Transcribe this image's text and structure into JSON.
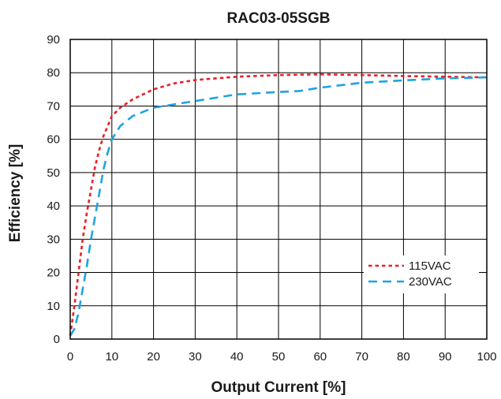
{
  "chart_data": {
    "type": "line",
    "title": "RAC03-05SGB",
    "xlabel": "Output Current [%]",
    "ylabel": "Efficiency [%]",
    "xlim": [
      0,
      100
    ],
    "ylim": [
      0,
      90
    ],
    "x_ticks": [
      0,
      10,
      20,
      30,
      40,
      50,
      60,
      70,
      80,
      90,
      100
    ],
    "y_ticks": [
      0,
      10,
      20,
      30,
      40,
      50,
      60,
      70,
      80,
      90
    ],
    "grid": true,
    "legend_position": "bottom-right",
    "series": [
      {
        "name": "115VAC",
        "color": "#e8202a",
        "dash": "dotted",
        "points": [
          [
            0,
            1
          ],
          [
            1,
            10
          ],
          [
            2,
            20
          ],
          [
            3,
            30
          ],
          [
            4,
            38
          ],
          [
            5,
            45
          ],
          [
            6,
            52
          ],
          [
            7,
            57
          ],
          [
            8,
            61
          ],
          [
            9,
            64
          ],
          [
            10,
            67
          ],
          [
            12,
            69.5
          ],
          [
            15,
            72
          ],
          [
            20,
            75
          ],
          [
            25,
            76.8
          ],
          [
            30,
            77.8
          ],
          [
            40,
            78.8
          ],
          [
            50,
            79.3
          ],
          [
            60,
            79.5
          ],
          [
            70,
            79.3
          ],
          [
            80,
            79
          ],
          [
            90,
            78.8
          ],
          [
            100,
            78.6
          ]
        ]
      },
      {
        "name": "230VAC",
        "color": "#1fa3e0",
        "dash": "dashed",
        "points": [
          [
            0,
            1
          ],
          [
            1,
            3
          ],
          [
            2,
            8
          ],
          [
            3,
            15
          ],
          [
            4,
            22
          ],
          [
            5,
            30
          ],
          [
            6,
            37
          ],
          [
            7,
            44
          ],
          [
            8,
            51
          ],
          [
            9,
            56
          ],
          [
            10,
            60
          ],
          [
            12,
            64
          ],
          [
            15,
            67
          ],
          [
            20,
            69.5
          ],
          [
            25,
            70.5
          ],
          [
            30,
            71.5
          ],
          [
            40,
            73.5
          ],
          [
            50,
            74.2
          ],
          [
            55,
            74.5
          ],
          [
            60,
            75.5
          ],
          [
            70,
            77
          ],
          [
            80,
            77.7
          ],
          [
            90,
            78.3
          ],
          [
            100,
            78.6
          ]
        ]
      }
    ]
  }
}
